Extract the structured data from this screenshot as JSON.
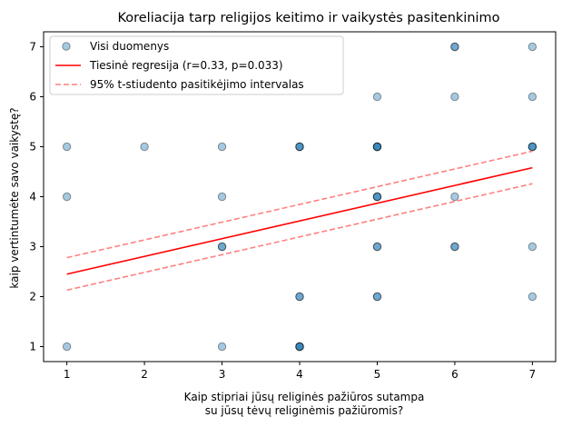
{
  "chart_data": {
    "type": "scatter",
    "title": "Koreliacija tarp religijos keitimo ir vaikystės pasitenkinimo",
    "xlabel": [
      "Kaip stipriai jūsų religinės pažiūros sutampa",
      "su jūsų tėvų religinėmis pažiūromis?"
    ],
    "ylabel": "kaip vertintumėte savo vaikystę?",
    "xlim": [
      0.7,
      7.3
    ],
    "ylim": [
      0.7,
      7.3
    ],
    "xticks": [
      "1",
      "2",
      "3",
      "4",
      "5",
      "6",
      "7"
    ],
    "yticks": [
      "1",
      "2",
      "3",
      "4",
      "5",
      "6",
      "7"
    ],
    "grid": false,
    "legend_position": "upper-left",
    "points": [
      {
        "x": 1,
        "y": 5,
        "n": 1
      },
      {
        "x": 1,
        "y": 4,
        "n": 1
      },
      {
        "x": 1,
        "y": 1,
        "n": 1
      },
      {
        "x": 2,
        "y": 5,
        "n": 1
      },
      {
        "x": 3,
        "y": 5,
        "n": 1
      },
      {
        "x": 3,
        "y": 4,
        "n": 1
      },
      {
        "x": 3,
        "y": 3,
        "n": 2
      },
      {
        "x": 3,
        "y": 1,
        "n": 1
      },
      {
        "x": 4,
        "y": 5,
        "n": 3
      },
      {
        "x": 4,
        "y": 2,
        "n": 2
      },
      {
        "x": 4,
        "y": 1,
        "n": 4
      },
      {
        "x": 5,
        "y": 6,
        "n": 1
      },
      {
        "x": 5,
        "y": 5,
        "n": 4
      },
      {
        "x": 5,
        "y": 4,
        "n": 3
      },
      {
        "x": 5,
        "y": 3,
        "n": 2
      },
      {
        "x": 5,
        "y": 2,
        "n": 2
      },
      {
        "x": 6,
        "y": 7,
        "n": 2
      },
      {
        "x": 6,
        "y": 6,
        "n": 1
      },
      {
        "x": 6,
        "y": 4,
        "n": 1
      },
      {
        "x": 6,
        "y": 3,
        "n": 2
      },
      {
        "x": 7,
        "y": 7,
        "n": 1
      },
      {
        "x": 7,
        "y": 6,
        "n": 1
      },
      {
        "x": 7,
        "y": 5,
        "n": 3
      },
      {
        "x": 7,
        "y": 3,
        "n": 1
      },
      {
        "x": 7,
        "y": 2,
        "n": 1
      }
    ],
    "regression": {
      "x": [
        1,
        7
      ],
      "y": [
        2.45,
        4.58
      ]
    },
    "ci_upper": {
      "x": [
        1,
        7
      ],
      "y": [
        2.78,
        4.91
      ]
    },
    "ci_lower": {
      "x": [
        1,
        7
      ],
      "y": [
        2.13,
        4.26
      ]
    },
    "series": [
      {
        "name": "Visi duomenys",
        "kind": "points",
        "color": "#1f77b4"
      },
      {
        "name": "Tiesinė regresija (r=0.33, p=0.033)",
        "kind": "line",
        "color": "#ff0000"
      },
      {
        "name": "95% t-stiudento pasitikėjimo intervalas",
        "kind": "dashed",
        "color": "#ff8080"
      }
    ]
  }
}
